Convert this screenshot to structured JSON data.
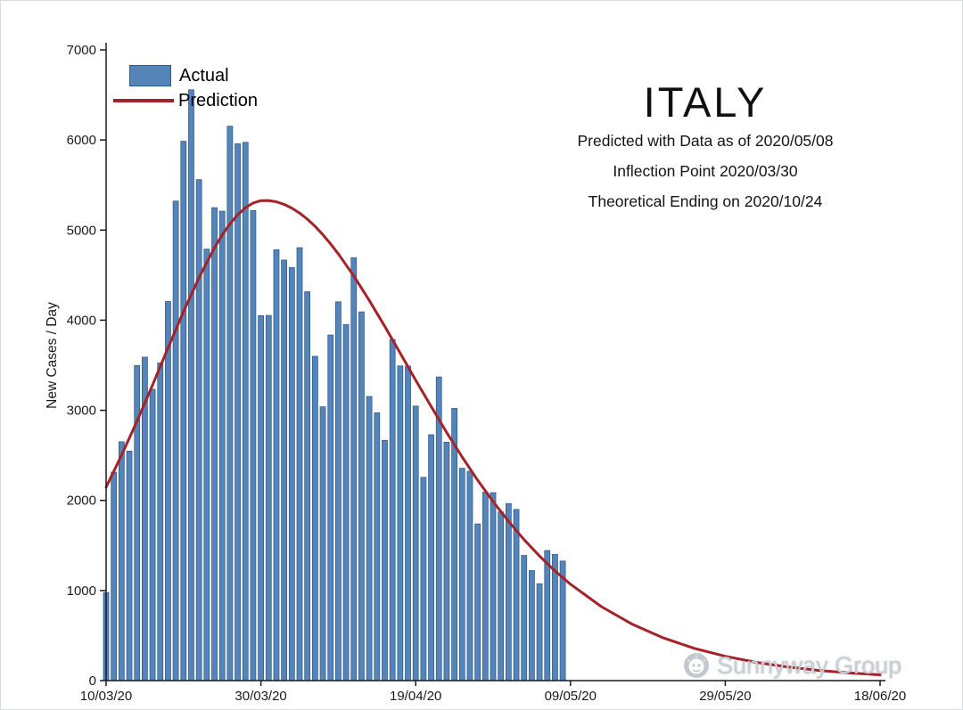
{
  "chart": {
    "title": "ITALY",
    "subtitle_lines": [
      "Predicted with Data as of 2020/05/08",
      "Inflection Point 2020/03/30",
      "Theoretical Ending on 2020/10/24"
    ],
    "ylabel": "New Cases / Day",
    "legend": {
      "actual": "Actual",
      "prediction": "Prediction"
    }
  },
  "watermark": {
    "text": "Sunnyway Group",
    "icon": "sunnyway-logo-icon"
  },
  "colors": {
    "bar_fill": "#5585b8",
    "bar_edge": "#2e5a8c",
    "prediction_line": "#a52228",
    "axis": "#1a1a1a",
    "tick_text": "#1a1a1a",
    "watermark_text": "#c9ced3",
    "watermark_icon": "#c2c8cd"
  },
  "chart_data": {
    "type": "bar",
    "title": "ITALY",
    "xlabel": "",
    "ylabel": "New Cases / Day",
    "ylim": [
      0,
      7000
    ],
    "y_ticks": [
      0,
      1000,
      2000,
      3000,
      4000,
      5000,
      6000,
      7000
    ],
    "x_tick_labels": [
      "10/03/20",
      "30/03/20",
      "19/04/20",
      "09/05/20",
      "29/05/20",
      "18/06/20"
    ],
    "x_tick_days": [
      0,
      20,
      40,
      60,
      80,
      100
    ],
    "grid": false,
    "legend_position": "top-left",
    "actual": {
      "name": "Actual",
      "dates": [
        "10/03/20",
        "11/03/20",
        "12/03/20",
        "13/03/20",
        "14/03/20",
        "15/03/20",
        "16/03/20",
        "17/03/20",
        "18/03/20",
        "19/03/20",
        "20/03/20",
        "21/03/20",
        "22/03/20",
        "23/03/20",
        "24/03/20",
        "25/03/20",
        "26/03/20",
        "27/03/20",
        "28/03/20",
        "29/03/20",
        "30/03/20",
        "31/03/20",
        "01/04/20",
        "02/04/20",
        "03/04/20",
        "04/04/20",
        "05/04/20",
        "06/04/20",
        "07/04/20",
        "08/04/20",
        "09/04/20",
        "10/04/20",
        "11/04/20",
        "12/04/20",
        "13/04/20",
        "14/04/20",
        "15/04/20",
        "16/04/20",
        "17/04/20",
        "18/04/20",
        "19/04/20",
        "20/04/20",
        "21/04/20",
        "22/04/20",
        "23/04/20",
        "24/04/20",
        "25/04/20",
        "26/04/20",
        "27/04/20",
        "28/04/20",
        "29/04/20",
        "30/04/20",
        "01/05/20",
        "02/05/20",
        "03/05/20",
        "04/05/20",
        "05/05/20",
        "06/05/20",
        "07/05/20",
        "08/05/20"
      ],
      "values": [
        977,
        2313,
        2651,
        2547,
        3497,
        3590,
        3233,
        3526,
        4207,
        5322,
        5986,
        6557,
        5560,
        4789,
        5249,
        5210,
        6153,
        5959,
        5974,
        5217,
        4050,
        4053,
        4782,
        4668,
        4585,
        4805,
        4316,
        3599,
        3039,
        3836,
        4204,
        3951,
        4694,
        4092,
        3153,
        2972,
        2667,
        3786,
        3493,
        3491,
        3047,
        2256,
        2729,
        3370,
        2646,
        3021,
        2357,
        2324,
        1739,
        2091,
        2086,
        1872,
        1965,
        1900,
        1389,
        1221,
        1075,
        1444,
        1401,
        1327
      ]
    },
    "prediction": {
      "name": "Prediction",
      "peak_value": 5330,
      "peak_day": "30/03/20",
      "points": [
        [
          0,
          2146
        ],
        [
          2,
          2503
        ],
        [
          4,
          2881
        ],
        [
          6,
          3281
        ],
        [
          8,
          3691
        ],
        [
          10,
          4094
        ],
        [
          12,
          4472
        ],
        [
          14,
          4804
        ],
        [
          15,
          4946
        ],
        [
          16,
          5069
        ],
        [
          17,
          5170
        ],
        [
          18,
          5248
        ],
        [
          19,
          5300
        ],
        [
          20,
          5327
        ],
        [
          21,
          5328
        ],
        [
          22,
          5314
        ],
        [
          23,
          5286
        ],
        [
          24,
          5244
        ],
        [
          25,
          5189
        ],
        [
          26,
          5121
        ],
        [
          27,
          5041
        ],
        [
          28,
          4950
        ],
        [
          29,
          4848
        ],
        [
          30,
          4737
        ],
        [
          32,
          4491
        ],
        [
          34,
          4220
        ],
        [
          36,
          3932
        ],
        [
          38,
          3634
        ],
        [
          40,
          3335
        ],
        [
          42,
          3041
        ],
        [
          44,
          2755
        ],
        [
          46,
          2482
        ],
        [
          48,
          2226
        ],
        [
          50,
          1987
        ],
        [
          52,
          1767
        ],
        [
          54,
          1565
        ],
        [
          56,
          1382
        ],
        [
          58,
          1217
        ],
        [
          60,
          1070
        ],
        [
          64,
          821
        ],
        [
          68,
          625
        ],
        [
          72,
          474
        ],
        [
          76,
          358
        ],
        [
          80,
          270
        ],
        [
          84,
          203
        ],
        [
          88,
          152
        ],
        [
          92,
          114
        ],
        [
          96,
          85
        ],
        [
          100,
          64
        ]
      ]
    }
  }
}
